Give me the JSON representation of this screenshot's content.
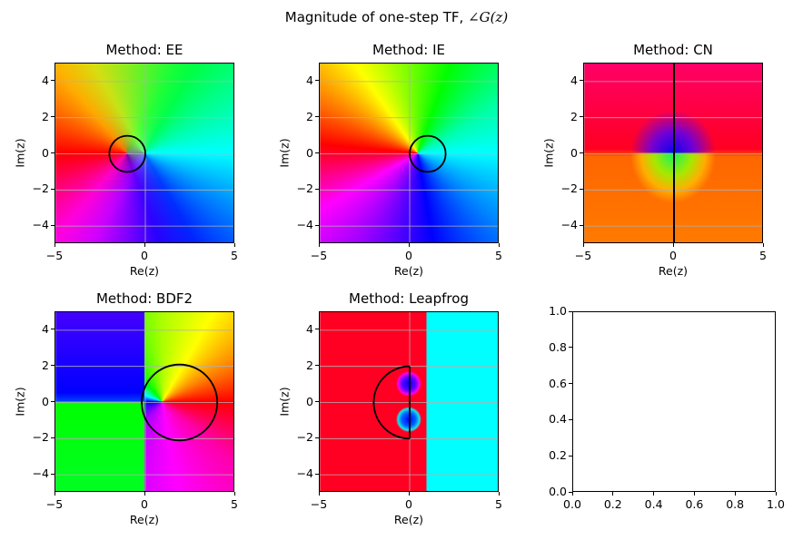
{
  "figure": {
    "title_prefix": "Magnitude of one-step TF, ",
    "title_math": "∠G(z)"
  },
  "chart_data": [
    {
      "type": "heatmap",
      "title": "Method: EE",
      "xlabel": "Re(z)",
      "ylabel": "Im(z)",
      "xlim": [
        -5,
        5
      ],
      "ylim": [
        -5,
        5
      ],
      "xticks": [
        "−5",
        "0",
        "5"
      ],
      "yticks": [
        "4",
        "2",
        "0",
        "−2",
        "−4"
      ],
      "grid": true,
      "stability_boundary": {
        "center": [
          -1,
          0
        ],
        "radius": 1
      }
    },
    {
      "type": "heatmap",
      "title": "Method: IE",
      "xlabel": "Re(z)",
      "ylabel": "Im(z)",
      "xlim": [
        -5,
        5
      ],
      "ylim": [
        -5,
        5
      ],
      "xticks": [
        "−5",
        "0",
        "5"
      ],
      "yticks": [
        "4",
        "2",
        "0",
        "−2",
        "−4"
      ],
      "grid": true,
      "stability_boundary": {
        "center": [
          1,
          0
        ],
        "radius": 1
      }
    },
    {
      "type": "heatmap",
      "title": "Method: CN",
      "xlabel": "Re(z)",
      "ylabel": "Im(z)",
      "xlim": [
        -5,
        5
      ],
      "ylim": [
        -5,
        5
      ],
      "xticks": [
        "−5",
        "0",
        "5"
      ],
      "yticks": [
        "4",
        "2",
        "0",
        "−2",
        "−4"
      ],
      "grid": true,
      "stability_boundary": {
        "line_x": 0
      }
    },
    {
      "type": "heatmap",
      "title": "Method: BDF2",
      "xlabel": "Re(z)",
      "ylabel": "Im(z)",
      "xlim": [
        -5,
        5
      ],
      "ylim": [
        -5,
        5
      ],
      "xticks": [
        "−5",
        "0",
        "5"
      ],
      "yticks": [
        "4",
        "2",
        "0",
        "−2",
        "−4"
      ],
      "grid": true,
      "stability_boundary": {
        "center": [
          1.9,
          0
        ],
        "radius": 2.1
      }
    },
    {
      "type": "heatmap",
      "title": "Method: Leapfrog",
      "xlabel": "Re(z)",
      "ylabel": "Im(z)",
      "xlim": [
        -5,
        5
      ],
      "ylim": [
        -5,
        5
      ],
      "xticks": [
        "−5",
        "0",
        "5"
      ],
      "yticks": [
        "4",
        "2",
        "0",
        "−2",
        "−4"
      ],
      "grid": true,
      "stability_boundary": {
        "center": [
          0,
          0
        ],
        "radius": 2,
        "half": "left"
      }
    },
    {
      "type": "empty",
      "xlim": [
        0,
        1
      ],
      "ylim": [
        0,
        1
      ],
      "xticks": [
        "0.0",
        "0.2",
        "0.4",
        "0.6",
        "0.8",
        "1.0"
      ],
      "yticks": [
        "1.0",
        "0.8",
        "0.6",
        "0.4",
        "0.2",
        "0.0"
      ]
    }
  ]
}
